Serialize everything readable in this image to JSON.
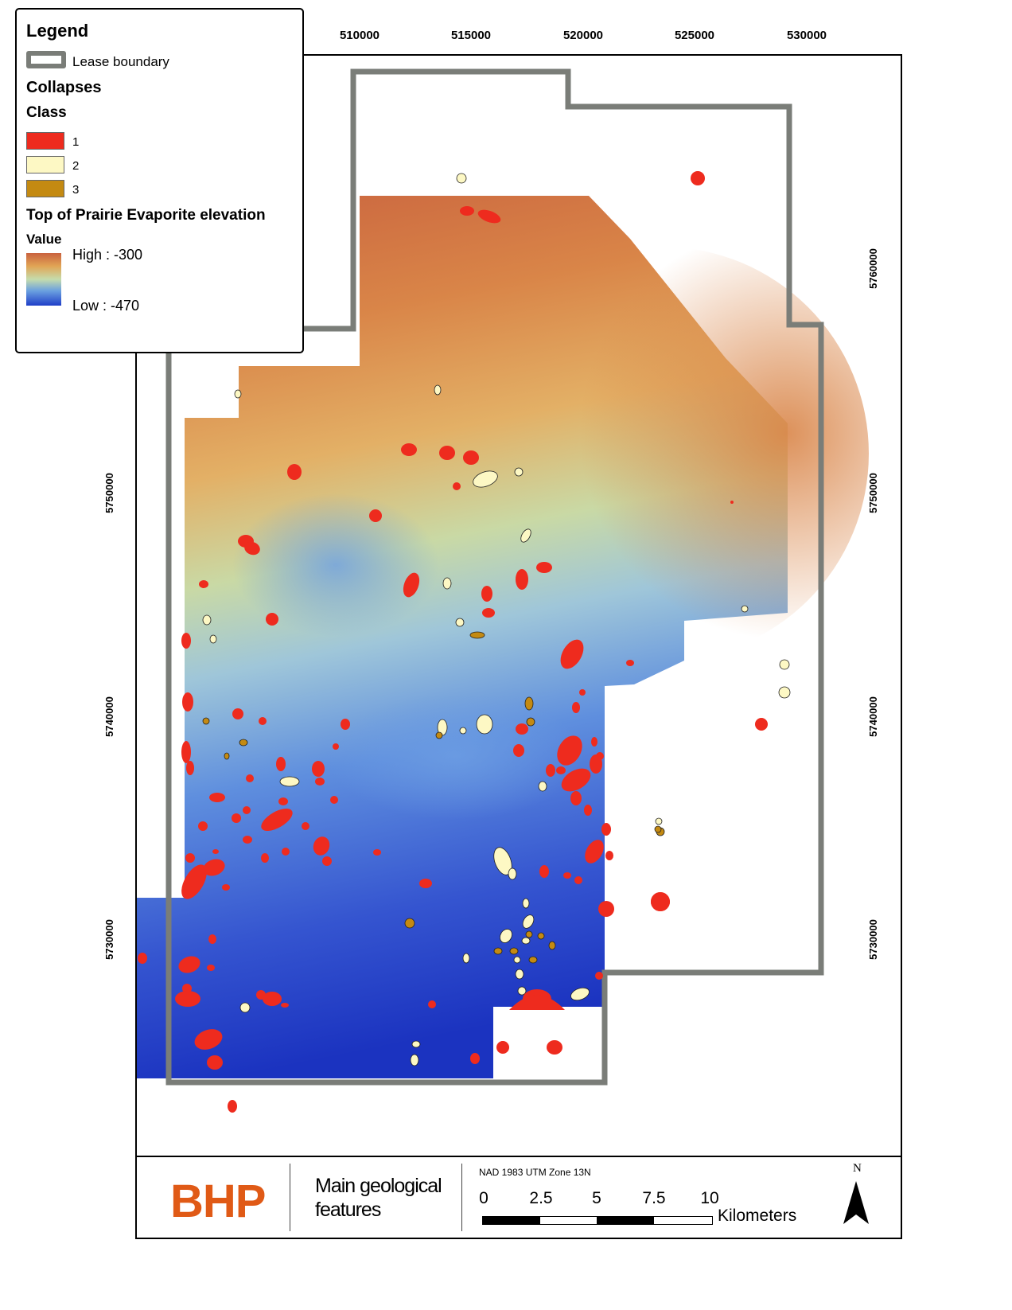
{
  "legend": {
    "title": "Legend",
    "lease_label": "Lease boundary",
    "collapses_title": "Collapses",
    "class_title": "Class",
    "classes": [
      {
        "label": "1",
        "color": "#ee2b1e"
      },
      {
        "label": "2",
        "color": "#fdf8c4"
      },
      {
        "label": "3",
        "color": "#c48a12"
      }
    ],
    "surface_title": "Top of Prairie Evaporite elevation",
    "value_title": "Value",
    "high_label": "High : -300",
    "low_label": "Low : -470"
  },
  "axes": {
    "x_ticks": [
      "510000",
      "515000",
      "520000",
      "525000",
      "530000"
    ],
    "y_ticks": [
      "5760000",
      "5750000",
      "5740000",
      "5730000"
    ]
  },
  "footer": {
    "logo": "BHP",
    "title_line1": "Main geological",
    "title_line2": "features",
    "crs": "NAD 1983 UTM Zone 13N",
    "scale_labels": [
      "0",
      "2.5",
      "5",
      "7.5",
      "10"
    ],
    "scale_units": "Kilometers",
    "north": "N"
  },
  "colors": {
    "lease": "#7a7d78",
    "high": "#c9623e",
    "mid": "#c5dcac",
    "low": "#1f3fc8",
    "logo": "#e05a16"
  }
}
